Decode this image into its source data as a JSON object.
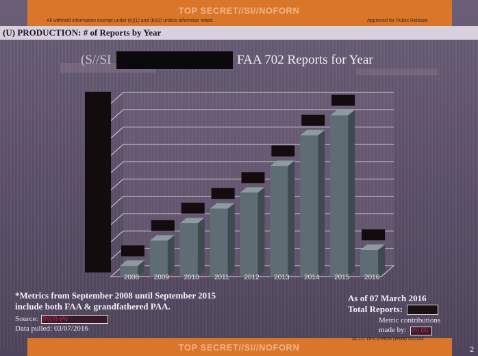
{
  "classification": {
    "top_marking": "TOP SECRET//SI//NOFORN",
    "bottom_marking": "TOP SECRET//SI//NOFORN",
    "withheld_note": "All withheld information exempt under (b)(1) and (b)(3) unless otherwise noted.",
    "release_note": "Approved for Public Release",
    "document_id": "ACLU 16-CV-8936 (RMB) 001144"
  },
  "heading": "(U) PRODUCTION: # of Reports by Year",
  "chart_data": {
    "type": "bar",
    "title_prefix": "(S//SI",
    "title": "FAA 702 Reports for Year",
    "categories": [
      "2008",
      "2009",
      "2010",
      "2011",
      "2012",
      "2013",
      "2014",
      "2015",
      "2016"
    ],
    "values": [
      0.8,
      2.7,
      4.0,
      5.1,
      6.3,
      8.3,
      10.6,
      12.1,
      2.0
    ],
    "value_labels_redacted": true,
    "y_axis_labels_redacted": true,
    "ylim": [
      0,
      13
    ],
    "gridlines": 10,
    "grid": true,
    "three_d": true,
    "bar_color": "#5e6c73",
    "redaction_color": "#120c0f"
  },
  "notes": {
    "metrics_line1": "*Metrics from September 2008 until September 2015",
    "metrics_line2": "include both FAA & grandfathered PAA.",
    "source_label": "Source:",
    "source_redaction": "(b)(3)-(A)",
    "data_pulled": "Data pulled: 03/07/2016",
    "as_of": "As of 07 March 2016",
    "total_reports_label": "Total Reports:",
    "metric_line1": "Metric contributions",
    "metric_line2": "made by:",
    "metric_redaction": "(b) (3)"
  },
  "page_number": "2"
}
